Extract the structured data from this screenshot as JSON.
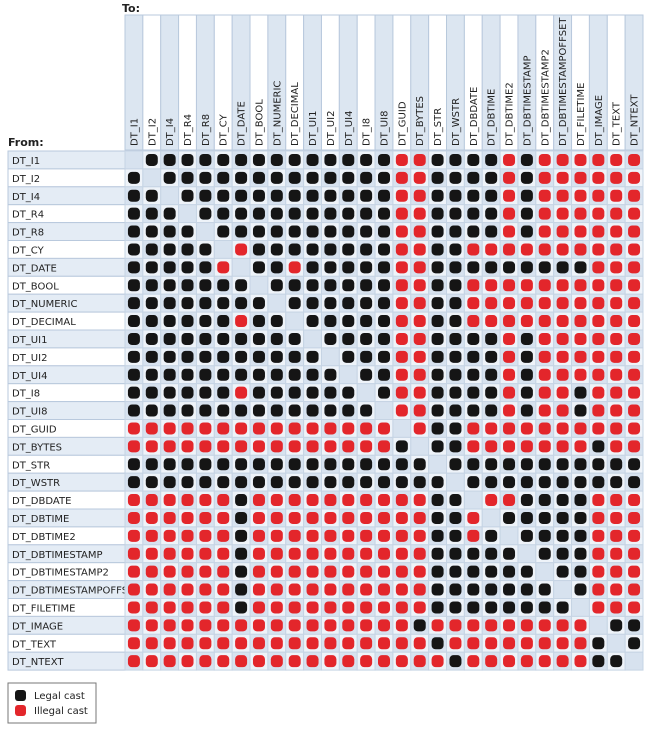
{
  "to_label": "To:",
  "from_label": "From:",
  "columns": [
    "DT_I1",
    "DT_I2",
    "DT_I4",
    "DT_R4",
    "DT_R8",
    "DT_CY",
    "DT_DATE",
    "DT_BOOL",
    "DT_NUMERIC",
    "DT_DECIMAL",
    "DT_UI1",
    "DT_UI2",
    "DT_UI4",
    "DT_I8",
    "DT_UI8",
    "DT_GUID",
    "DT_BYTES",
    "DT_STR",
    "DT_WSTR",
    "DT_DBDATE",
    "DT_DBTIME",
    "DT_DBTIME2",
    "DT_DBTIMESTAMP",
    "DT_DBTIMESTAMP2",
    "DT_DBTIMESTAMPOFFSET",
    "DT_FILETIME",
    "DT_IMAGE",
    "DT_TEXT",
    "DT_NTEXT"
  ],
  "rows": [
    {
      "label": "DT_I1",
      "cells": "-LLLLLLLLLLLLLLIILLLLILIIIIII"
    },
    {
      "label": "DT_I2",
      "cells": "L-LLLLLLLLLLLLLIILLLLILIIIIII"
    },
    {
      "label": "DT_I4",
      "cells": "LL-LLLLLLLLLLLLIILLLLILIIIIII"
    },
    {
      "label": "DT_R4",
      "cells": "LLL-LLLLLLLLLLLIILLLLILIIIIII"
    },
    {
      "label": "DT_R8",
      "cells": "LLLL-LLLLLLLLLLIILLLLILIIIIII"
    },
    {
      "label": "DT_CY",
      "cells": "LLLLL-ILLLLLLLLIILLIIIIIIIIII"
    },
    {
      "label": "DT_DATE",
      "cells": "LLLLLI-LLILLLLLIILLLLLLLLLIII"
    },
    {
      "label": "DT_BOOL",
      "cells": "LLLLLLL-LLLLLLLIILLIIIIIIIIII"
    },
    {
      "label": "DT_NUMERIC",
      "cells": "LLLLLLLL-LLLLLLIILLIIIIIIIIII"
    },
    {
      "label": "DT_DECIMAL",
      "cells": "LLLLLLILL-LLLLLIILLIIIIIIIIII"
    },
    {
      "label": "DT_UI1",
      "cells": "LLLLLLLLLL-LLLLIILLLLILIIIIII"
    },
    {
      "label": "DT_UI2",
      "cells": "LLLLLLLLLLL-LLLIILLLLILIIIIII"
    },
    {
      "label": "DT_UI4",
      "cells": "LLLLLLLLLLLL-LLIILLLLILIIIIII"
    },
    {
      "label": "DT_I8",
      "cells": "LLLLLLILLLLLL-LIILLLLILIILIII"
    },
    {
      "label": "DT_UI8",
      "cells": "LLLLLLLLLLLLLL-IILLLLILIILIII"
    },
    {
      "label": "DT_GUID",
      "cells": "IIIIIIIIIIIIIII-ILLIIIIIIIIII"
    },
    {
      "label": "DT_BYTES",
      "cells": "IIIIIIIIIIIIIIIL-LLIIIIIIILII"
    },
    {
      "label": "DT_STR",
      "cells": "LLLLLLLLLLLLLLLLL-LLLLLLLLLLL"
    },
    {
      "label": "DT_WSTR",
      "cells": "LLLLLLLLLLLLLLLLLL-LLLLLLLLLL"
    },
    {
      "label": "DT_DBDATE",
      "cells": "IIIIIILIIIIIIIIIILL-IILLLLIII"
    },
    {
      "label": "DT_DBTIME",
      "cells": "IIIIIILIIIIIIIIIILLI-LLLLLIII"
    },
    {
      "label": "DT_DBTIME2",
      "cells": "IIIIIILIIIIIIIIIILLIL-LLLLIII"
    },
    {
      "label": "DT_DBTIMESTAMP",
      "cells": "IIIIIILIIIIIIIIIILLLLL-LLLIII"
    },
    {
      "label": "DT_DBTIMESTAMP2",
      "cells": "IIIIIILIIIIIIIIIILLLLLL-LLIII"
    },
    {
      "label": "DT_DBTIMESTAMPOFFSET",
      "cells": "IIIIIILIIIIIIIIIILLLLLLL-LIII"
    },
    {
      "label": "DT_FILETIME",
      "cells": "IIIIIILIIIIIIIIIILLLLLLLL-III"
    },
    {
      "label": "DT_IMAGE",
      "cells": "IIIIIIIIIIIIIIIILIIIIIIIII-LL"
    },
    {
      "label": "DT_TEXT",
      "cells": "IIIIIIIIIIIIIIIIILIIIIIIIIL-L"
    },
    {
      "label": "DT_NTEXT",
      "cells": "IIIIIIIIIIIIIIIIIILIIIIIIILL-"
    }
  ],
  "legend": [
    {
      "label": "Legal cast",
      "code": "L",
      "color": "#151515"
    },
    {
      "label": "Illegal cast",
      "code": "I",
      "color": "#e3262b"
    }
  ]
}
